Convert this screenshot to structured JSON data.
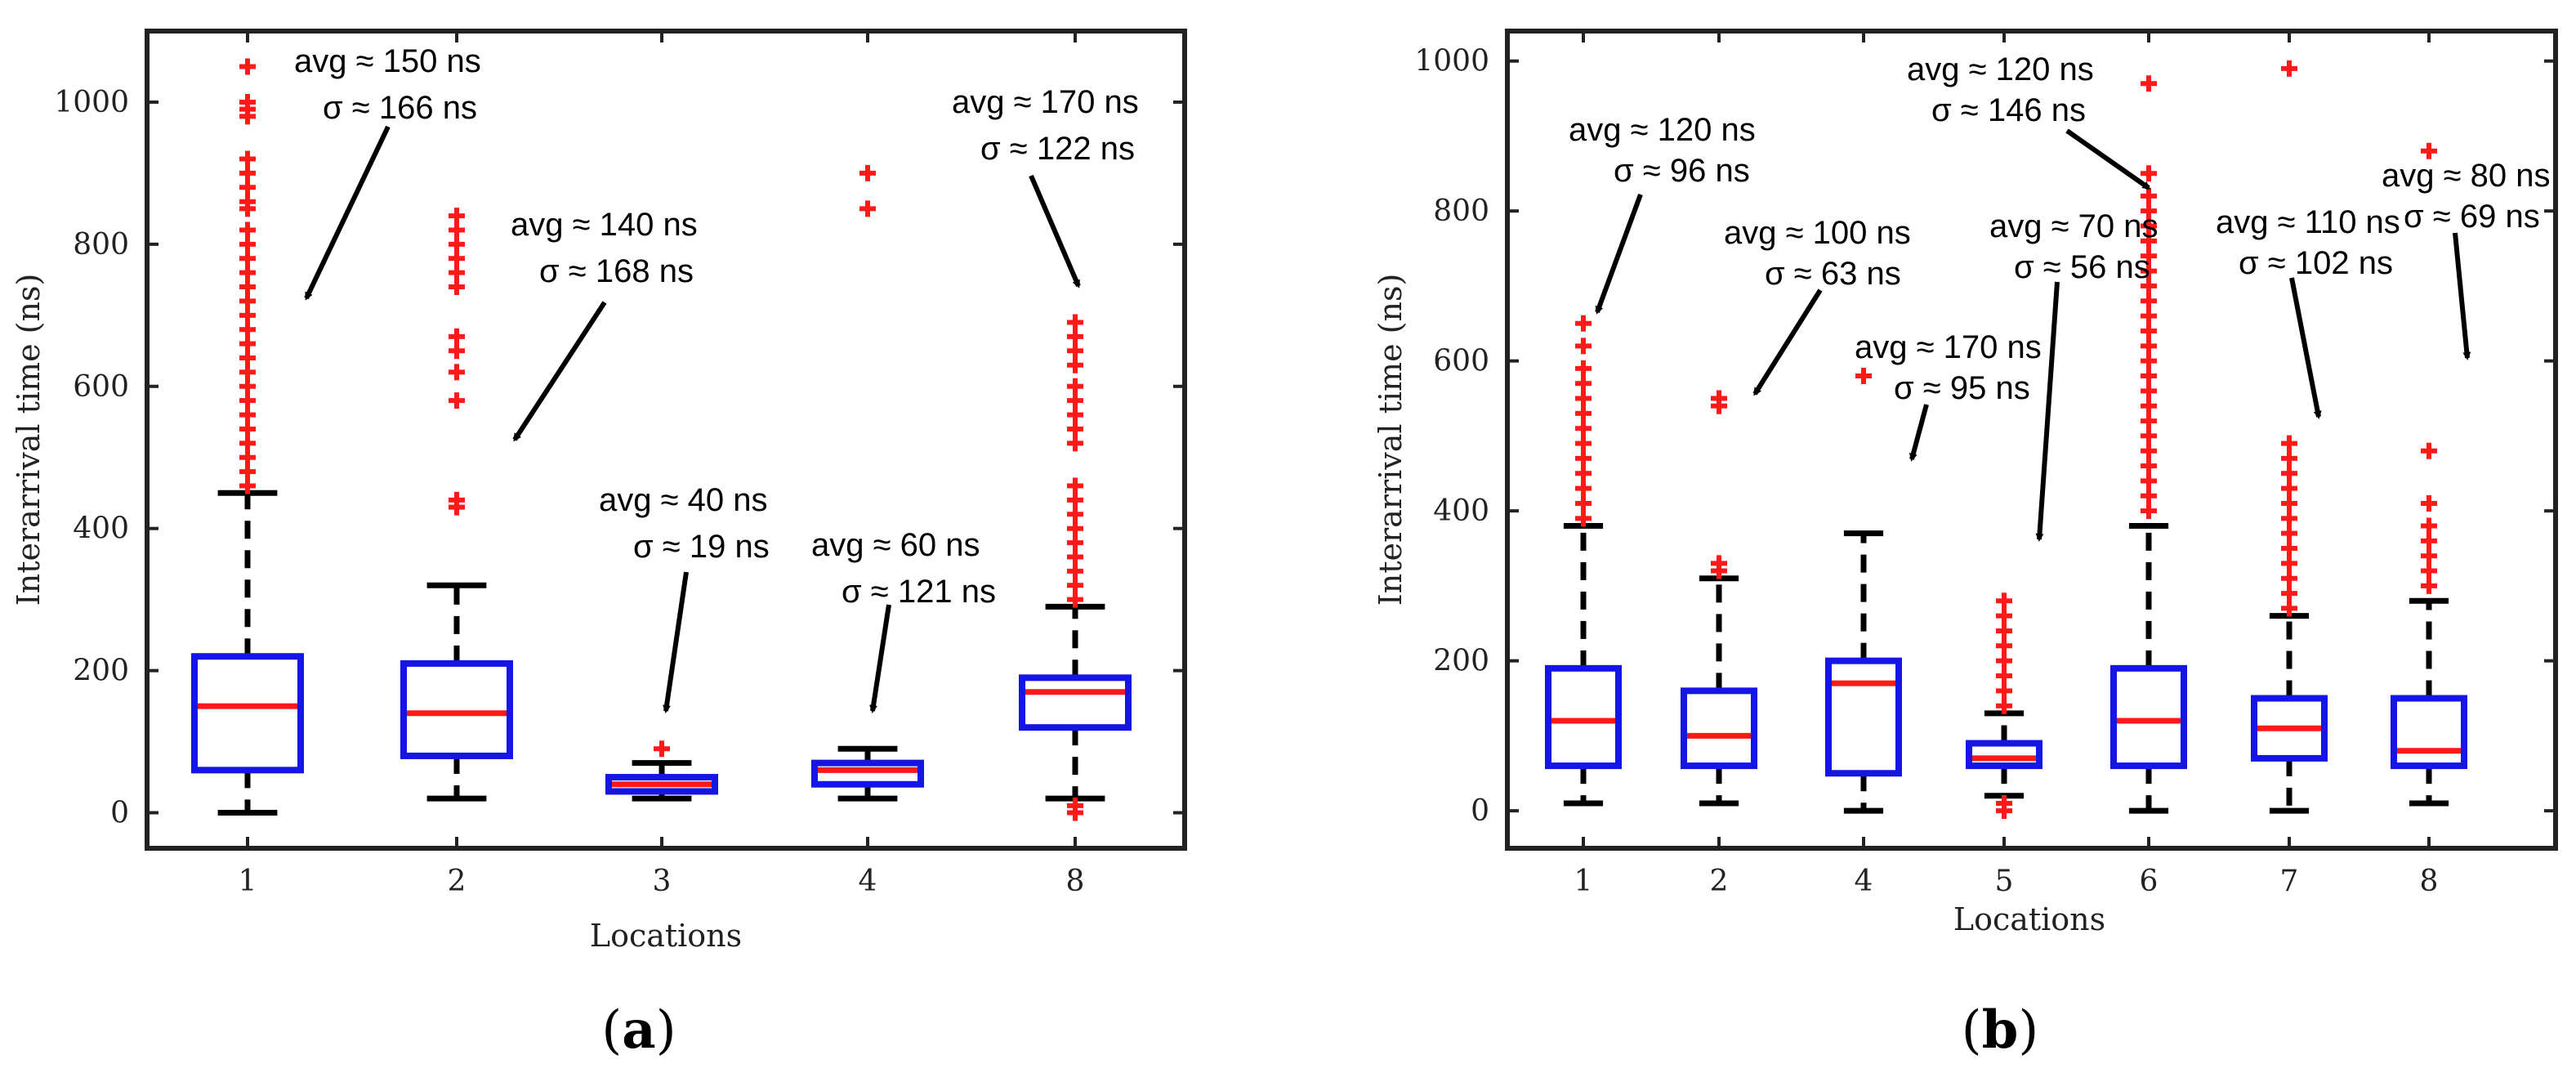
{
  "figure": {
    "panel_labels": [
      "(a)",
      "(b)"
    ]
  },
  "colors": {
    "box": "#1515e6",
    "median": "#ff1a1a",
    "outlier": "#ff1a1a",
    "whisker": "#000000",
    "axis": "#222222"
  },
  "chart_data": [
    {
      "type": "boxplot",
      "panel": "a",
      "xlabel": "Locations",
      "ylabel": "Interarrival time (ns)",
      "ylim": [
        -50,
        1100
      ],
      "yticks": [
        0,
        200,
        400,
        600,
        800,
        1000
      ],
      "categories": [
        "1",
        "2",
        "3",
        "4",
        "8"
      ],
      "boxes": [
        {
          "q1": 60,
          "median": 150,
          "q3": 220,
          "whisker_low": 0,
          "whisker_high": 450,
          "outliers": [
            1050,
            1000,
            990,
            980,
            920,
            900,
            880,
            860,
            850,
            820,
            800,
            780,
            760,
            740,
            720,
            700,
            680,
            660,
            640,
            620,
            600,
            580,
            560,
            540,
            520,
            500,
            480,
            460
          ]
        },
        {
          "q1": 80,
          "median": 140,
          "q3": 210,
          "whisker_low": 20,
          "whisker_high": 320,
          "outliers": [
            840,
            820,
            800,
            780,
            760,
            740,
            670,
            650,
            620,
            580,
            440,
            430
          ]
        },
        {
          "q1": 30,
          "median": 40,
          "q3": 50,
          "whisker_low": 20,
          "whisker_high": 70,
          "outliers": [
            90
          ]
        },
        {
          "q1": 40,
          "median": 60,
          "q3": 70,
          "whisker_low": 20,
          "whisker_high": 90,
          "outliers": [
            900,
            850
          ]
        },
        {
          "q1": 120,
          "median": 170,
          "q3": 190,
          "whisker_low": 20,
          "whisker_high": 290,
          "outliers": [
            690,
            670,
            650,
            630,
            600,
            580,
            560,
            540,
            520,
            460,
            440,
            420,
            400,
            380,
            360,
            340,
            320,
            300,
            10,
            0
          ]
        }
      ],
      "annotations": [
        {
          "label": "avg ≈ 150 ns",
          "sigma_label": "σ ≈ 166 ns"
        },
        {
          "label": "avg ≈ 140 ns",
          "sigma_label": "σ ≈ 168 ns"
        },
        {
          "label": "avg ≈ 40 ns",
          "sigma_label": "σ ≈ 19 ns"
        },
        {
          "label": "avg ≈ 60 ns",
          "sigma_label": "σ ≈ 121 ns"
        },
        {
          "label": "avg ≈ 170 ns",
          "sigma_label": "σ ≈ 122 ns"
        }
      ]
    },
    {
      "type": "boxplot",
      "panel": "b",
      "xlabel": "Locations",
      "ylabel": "Interarrival time (ns)",
      "ylim": [
        -50,
        1040
      ],
      "yticks": [
        0,
        200,
        400,
        600,
        800,
        1000
      ],
      "categories": [
        "1",
        "2",
        "4",
        "5",
        "6",
        "7",
        "8"
      ],
      "boxes": [
        {
          "q1": 60,
          "median": 120,
          "q3": 190,
          "whisker_low": 10,
          "whisker_high": 380,
          "outliers": [
            650,
            620,
            590,
            570,
            550,
            530,
            510,
            490,
            470,
            450,
            430,
            410,
            390
          ]
        },
        {
          "q1": 60,
          "median": 100,
          "q3": 160,
          "whisker_low": 10,
          "whisker_high": 310,
          "outliers": [
            550,
            540,
            330,
            320
          ]
        },
        {
          "q1": 50,
          "median": 170,
          "q3": 200,
          "whisker_low": 0,
          "whisker_high": 370,
          "outliers": [
            580
          ]
        },
        {
          "q1": 60,
          "median": 70,
          "q3": 90,
          "whisker_low": 20,
          "whisker_high": 130,
          "outliers": [
            280,
            260,
            240,
            220,
            200,
            180,
            160,
            140,
            10,
            0
          ]
        },
        {
          "q1": 60,
          "median": 120,
          "q3": 190,
          "whisker_low": 0,
          "whisker_high": 380,
          "outliers": [
            970,
            850,
            820,
            800,
            780,
            760,
            740,
            720,
            700,
            680,
            660,
            640,
            620,
            600,
            580,
            560,
            540,
            520,
            500,
            480,
            460,
            440,
            420,
            400
          ]
        },
        {
          "q1": 70,
          "median": 110,
          "q3": 150,
          "whisker_low": 0,
          "whisker_high": 260,
          "outliers": [
            990,
            490,
            470,
            450,
            430,
            410,
            390,
            370,
            350,
            330,
            310,
            290,
            270
          ]
        },
        {
          "q1": 60,
          "median": 80,
          "q3": 150,
          "whisker_low": 10,
          "whisker_high": 280,
          "outliers": [
            880,
            480,
            410,
            380,
            360,
            340,
            320,
            300
          ]
        }
      ],
      "annotations": [
        {
          "label": "avg ≈ 120 ns",
          "sigma_label": "σ ≈ 96 ns"
        },
        {
          "label": "avg ≈ 100 ns",
          "sigma_label": "σ ≈ 63 ns"
        },
        {
          "label": "avg ≈ 170 ns",
          "sigma_label": "σ ≈ 95 ns"
        },
        {
          "label": "avg ≈ 70 ns",
          "sigma_label": "σ ≈ 56 ns"
        },
        {
          "label": "avg ≈ 120 ns",
          "sigma_label": "σ ≈ 146 ns"
        },
        {
          "label": "avg ≈ 110 ns",
          "sigma_label": "σ ≈ 102 ns"
        },
        {
          "label": "avg ≈ 80 ns",
          "sigma_label": "σ ≈ 69 ns"
        }
      ]
    }
  ]
}
